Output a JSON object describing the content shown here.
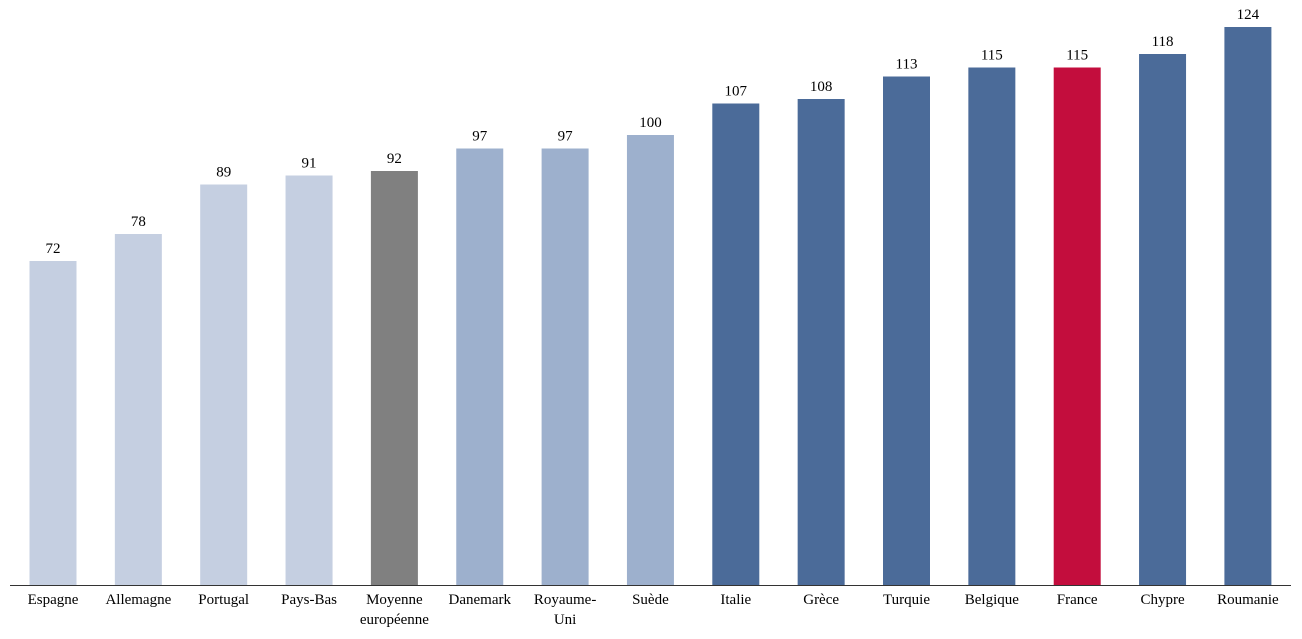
{
  "chart_data": {
    "type": "bar",
    "categories": [
      "Espagne",
      "Allemagne",
      "Portugal",
      "Pays-Bas",
      "Moyenne\neuropéenne",
      "Danemark",
      "Royaume-\nUni",
      "Suède",
      "Italie",
      "Grèce",
      "Turquie",
      "Belgique",
      "France",
      "Chypre",
      "Roumanie"
    ],
    "values": [
      72,
      78,
      89,
      91,
      92,
      97,
      97,
      100,
      107,
      108,
      113,
      115,
      115,
      118,
      124
    ],
    "colors": [
      "#c5cfe1",
      "#c5cfe1",
      "#c5cfe1",
      "#c5cfe1",
      "#808080",
      "#9db0cd",
      "#9db0cd",
      "#9db0cd",
      "#4b6b99",
      "#4b6b99",
      "#4b6b99",
      "#4b6b99",
      "#c30d3d",
      "#4b6b99",
      "#4b6b99"
    ],
    "data_labels": true,
    "ylim": [
      0,
      124
    ],
    "grid": false,
    "title": "",
    "xlabel": "",
    "ylabel": ""
  }
}
